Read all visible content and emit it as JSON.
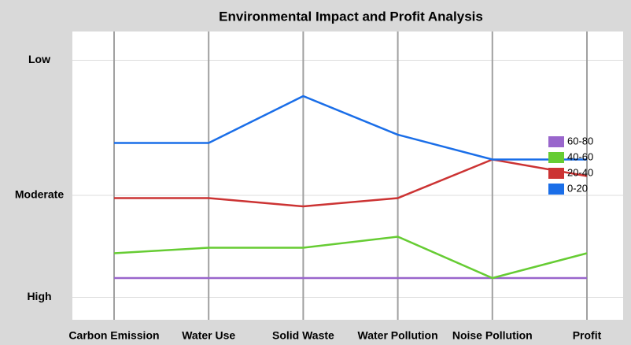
{
  "chart_data": {
    "type": "line",
    "title": "Environmental Impact and Profit Analysis",
    "categories": [
      "Carbon Emission",
      "Water Use",
      "Solid Waste",
      "Water Pollution",
      "Noise Pollution",
      "Profit"
    ],
    "ylim": [
      0,
      100
    ],
    "yticks": [
      {
        "value": 7,
        "label": "High"
      },
      {
        "value": 44,
        "label": "Moderate"
      },
      {
        "value": 93,
        "label": "Low"
      }
    ],
    "grid": true,
    "legend": "right",
    "series": [
      {
        "name": "60-80",
        "color": "#9966cc",
        "values": [
          14,
          14,
          14,
          14,
          14,
          14
        ]
      },
      {
        "name": "40-60",
        "color": "#66cc33",
        "values": [
          23,
          25,
          25,
          29,
          14,
          23
        ]
      },
      {
        "name": "20-40",
        "color": "#cc3333",
        "values": [
          43,
          43,
          40,
          43,
          57,
          51
        ]
      },
      {
        "name": "0-20",
        "color": "#1a6ee8",
        "values": [
          63,
          63,
          80,
          66,
          57,
          57
        ]
      }
    ]
  }
}
